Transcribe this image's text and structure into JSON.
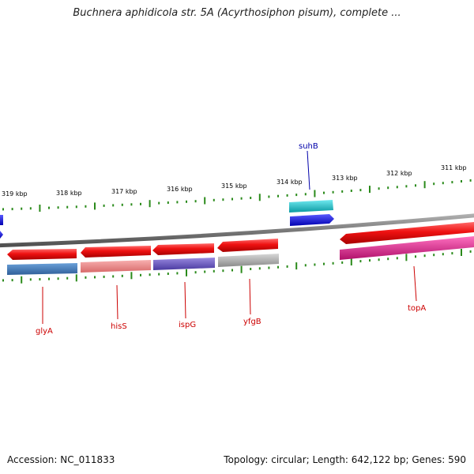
{
  "header": {
    "title": "Buchnera aphidicola str. 5A (Acyrthosiphon pisum), complete ..."
  },
  "footer": {
    "accession": "Accession: NC_011833",
    "summary": "Topology: circular; Length: 642,122 bp; Genes: 590"
  },
  "ruler": {
    "labels": [
      "319 kbp",
      "318 kbp",
      "317 kbp",
      "316 kbp",
      "315 kbp",
      "314 kbp",
      "313 kbp",
      "312 kbp",
      "311 kbp"
    ],
    "tick_color": "#2a8a1a"
  },
  "genes": [
    {
      "name": "glyA",
      "label_color": "#cc0000",
      "feature_color": "#4a7ab5"
    },
    {
      "name": "hisS",
      "label_color": "#cc0000",
      "feature_color": "#ee8888"
    },
    {
      "name": "ispG",
      "label_color": "#cc0000",
      "feature_color": "#7060c0"
    },
    {
      "name": "yfgB",
      "label_color": "#cc0000",
      "feature_color": "#aaaaaa"
    },
    {
      "name": "topA",
      "label_color": "#cc0000",
      "feature_color": "#e0208a"
    },
    {
      "name": "suhB",
      "label_color": "#0000aa",
      "feature_color": "#18c0c8"
    }
  ],
  "colors": {
    "cds": "#ee1111",
    "backbone": "#7a7a7a",
    "forward_gene": "#1010e0"
  }
}
